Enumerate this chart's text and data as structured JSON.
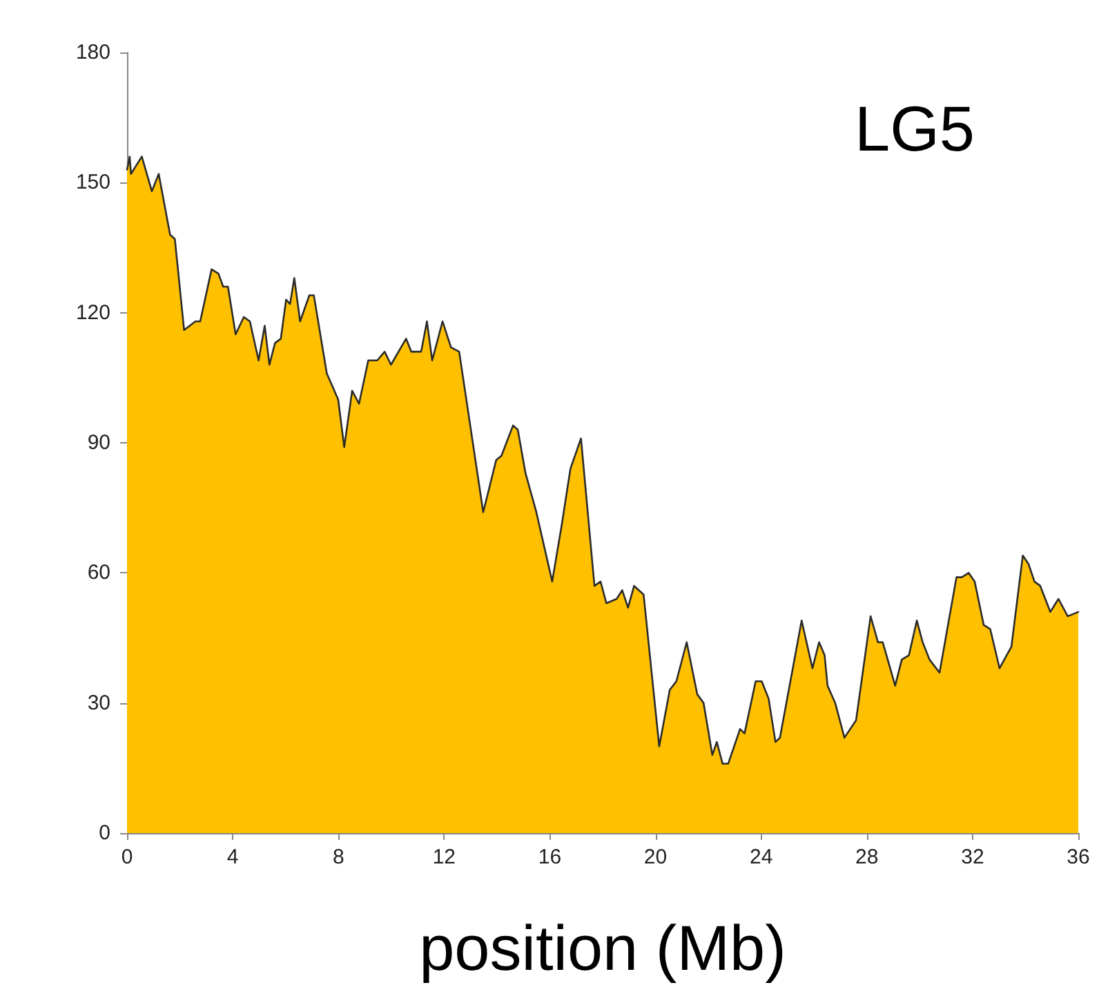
{
  "chart_data": {
    "type": "area",
    "xlabel": "position (Mb)",
    "annotations": [
      "LG5"
    ],
    "xlim": [
      0,
      36
    ],
    "xticks": [
      0,
      4,
      8,
      12,
      16,
      20,
      24,
      28,
      32,
      36
    ],
    "ylim": [
      0,
      180
    ],
    "yticks": [
      0,
      30,
      60,
      90,
      120,
      150,
      180
    ],
    "grid": false,
    "marker": "none",
    "line_style": "solid",
    "series": [
      {
        "color": "#ffc000",
        "x": [
          0,
          0.1,
          0.15,
          0.56,
          0.94,
          1.2,
          1.63,
          1.81,
          2.16,
          2.59,
          2.77,
          3.2,
          3.46,
          3.64,
          3.82,
          4.11,
          4.42,
          4.65,
          4.98,
          5.21,
          5.39,
          5.6,
          5.82,
          6.02,
          6.17,
          6.33,
          6.55,
          6.9,
          7.07,
          7.56,
          7.99,
          8.22,
          8.52,
          8.78,
          9.13,
          9.47,
          9.75,
          9.99,
          10.56,
          10.76,
          11.13,
          11.35,
          11.55,
          11.94,
          12.26,
          12.57,
          13.48,
          13.97,
          14.17,
          14.61,
          14.79,
          15.08,
          15.49,
          16.09,
          16.45,
          16.78,
          17.18,
          17.69,
          17.92,
          18.14,
          18.53,
          18.74,
          18.96,
          19.19,
          19.55,
          20.14,
          20.54,
          20.79,
          21.18,
          21.58,
          21.82,
          22.15,
          22.32,
          22.54,
          22.75,
          23.2,
          23.37,
          23.79,
          24.02,
          24.28,
          24.54,
          24.71,
          25.53,
          25.94,
          26.19,
          26.4,
          26.51,
          26.8,
          27.15,
          27.59,
          28.14,
          28.42,
          28.6,
          29.07,
          29.32,
          29.59,
          29.89,
          30.11,
          30.37,
          30.75,
          31.39,
          31.59,
          31.85,
          32.08,
          32.42,
          32.67,
          33.02,
          33.47,
          33.9,
          34.12,
          34.34,
          34.56,
          34.94,
          35.25,
          35.6,
          36
        ],
        "values": [
          153,
          156,
          152,
          156,
          148,
          152,
          138,
          137,
          116,
          118,
          118,
          130,
          129,
          126,
          126,
          115,
          119,
          118,
          109,
          117,
          108,
          113,
          114,
          123,
          122,
          128,
          118,
          124,
          124,
          106,
          100,
          89,
          102,
          99,
          109,
          109,
          111,
          108,
          114,
          111,
          111,
          118,
          109,
          118,
          112,
          111,
          74,
          86,
          87,
          94,
          93,
          83,
          74,
          58,
          71,
          84,
          91,
          57,
          58,
          53,
          54,
          56,
          52,
          57,
          55,
          20,
          33,
          35,
          44,
          32,
          30,
          18,
          21,
          16,
          16,
          24,
          23,
          35,
          35,
          31,
          21,
          22,
          49,
          38,
          44,
          41,
          34,
          30,
          22,
          26,
          50,
          44,
          44,
          34,
          40,
          41,
          49,
          44,
          40,
          37,
          59,
          59,
          60,
          58,
          48,
          47,
          38,
          43,
          64,
          62,
          58,
          57,
          51,
          54,
          50,
          51
        ]
      }
    ]
  }
}
